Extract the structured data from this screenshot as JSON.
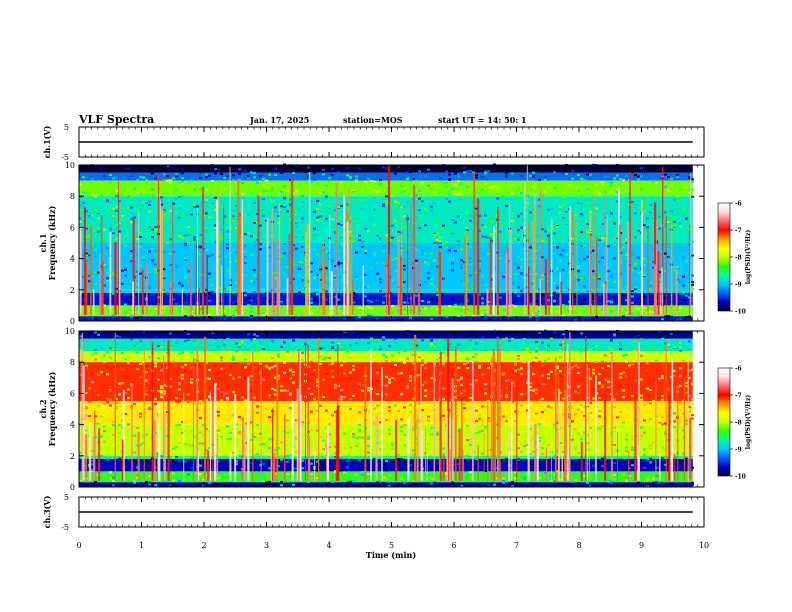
{
  "header": {
    "title": "VLF Spectra",
    "date": "Jan. 17, 2025",
    "station": "station=MOS",
    "start": "start UT =  14: 50: 1"
  },
  "colors": {
    "spectrogram_scale": [
      "#000033",
      "#0000c8",
      "#0064ff",
      "#00c8ff",
      "#00ff96",
      "#32ff00",
      "#c8ff00",
      "#ffff00",
      "#ff9600",
      "#ff0000",
      "#ff6e6e",
      "#ffdcdc",
      "#ffffff"
    ]
  },
  "chart_data": [
    {
      "type": "line",
      "panel": "ch1-waveform",
      "ylabel": "ch.1(V)",
      "ylim": [
        -5,
        5
      ],
      "y_ticks": [
        "5",
        "-5"
      ],
      "x_range": [
        0,
        10
      ],
      "description_values": {
        "baseline_level_v": 0.0
      }
    },
    {
      "type": "heatmap",
      "panel": "ch1-spectrogram",
      "ylabel": "ch.1\nFrequency (kHz)",
      "ylabel_lines": [
        "ch.1",
        "Frequency (kHz)"
      ],
      "ylim": [
        0,
        10
      ],
      "y_ticks": [
        "0",
        "2",
        "4",
        "6",
        "8",
        "10"
      ],
      "x_range": [
        0,
        10
      ],
      "colorbar": {
        "label": "log(PSD)(V²/Hz)",
        "range": [
          -10,
          -6
        ],
        "ticks": [
          "-6",
          "-7",
          "-8",
          "-9",
          "-10"
        ]
      },
      "bands_khz": [
        {
          "from": 9.5,
          "to": 10.0,
          "level": -10.0
        },
        {
          "from": 9.0,
          "to": 9.5,
          "level": -9.3
        },
        {
          "from": 8.0,
          "to": 9.0,
          "level": -8.2
        },
        {
          "from": 5.0,
          "to": 8.0,
          "level": -8.8
        },
        {
          "from": 2.0,
          "to": 5.0,
          "level": -9.0
        },
        {
          "from": 1.8,
          "to": 2.0,
          "level": -8.9
        },
        {
          "from": 1.0,
          "to": 1.8,
          "level": -9.6
        },
        {
          "from": 0.3,
          "to": 1.0,
          "level": -8.2
        },
        {
          "from": 0.0,
          "to": 0.3,
          "level": -9.6
        }
      ],
      "burst_level": -6.8
    },
    {
      "type": "heatmap",
      "panel": "ch2-spectrogram",
      "ylabel": "ch.2\nFrequency (kHz)",
      "ylabel_lines": [
        "ch.2",
        "Frequency (kHz)"
      ],
      "ylim": [
        0,
        10
      ],
      "y_ticks": [
        "0",
        "2",
        "4",
        "6",
        "8",
        "10"
      ],
      "x_range": [
        0,
        10
      ],
      "colorbar": {
        "label": "log(PSD)(V²/Hz)",
        "range": [
          -10,
          -6
        ],
        "ticks": [
          "-6",
          "-7",
          "-8",
          "-9",
          "-10"
        ]
      },
      "bands_khz": [
        {
          "from": 9.5,
          "to": 10.0,
          "level": -9.8
        },
        {
          "from": 8.7,
          "to": 9.5,
          "level": -8.8
        },
        {
          "from": 8.0,
          "to": 8.7,
          "level": -8.0
        },
        {
          "from": 5.5,
          "to": 8.0,
          "level": -7.1
        },
        {
          "from": 4.0,
          "to": 5.5,
          "level": -7.6
        },
        {
          "from": 2.0,
          "to": 4.0,
          "level": -8.0
        },
        {
          "from": 1.8,
          "to": 2.0,
          "level": -8.6
        },
        {
          "from": 1.0,
          "to": 1.8,
          "level": -9.7
        },
        {
          "from": 0.3,
          "to": 1.0,
          "level": -8.4
        },
        {
          "from": 0.0,
          "to": 0.3,
          "level": -9.7
        }
      ],
      "burst_level": -6.6
    },
    {
      "type": "line",
      "panel": "ch3-waveform",
      "ylabel": "ch.3(V)",
      "ylim": [
        -5,
        5
      ],
      "y_ticks": [
        "5",
        "-5"
      ],
      "x_range": [
        0,
        10
      ],
      "description_values": {
        "baseline_level_v": 0.0
      }
    }
  ],
  "x_axis": {
    "label": "Time (min)",
    "ticks": [
      "0",
      "1",
      "2",
      "3",
      "4",
      "5",
      "6",
      "7",
      "8",
      "9",
      "10"
    ],
    "range": [
      0,
      10
    ],
    "data_end_min": 9.82
  }
}
